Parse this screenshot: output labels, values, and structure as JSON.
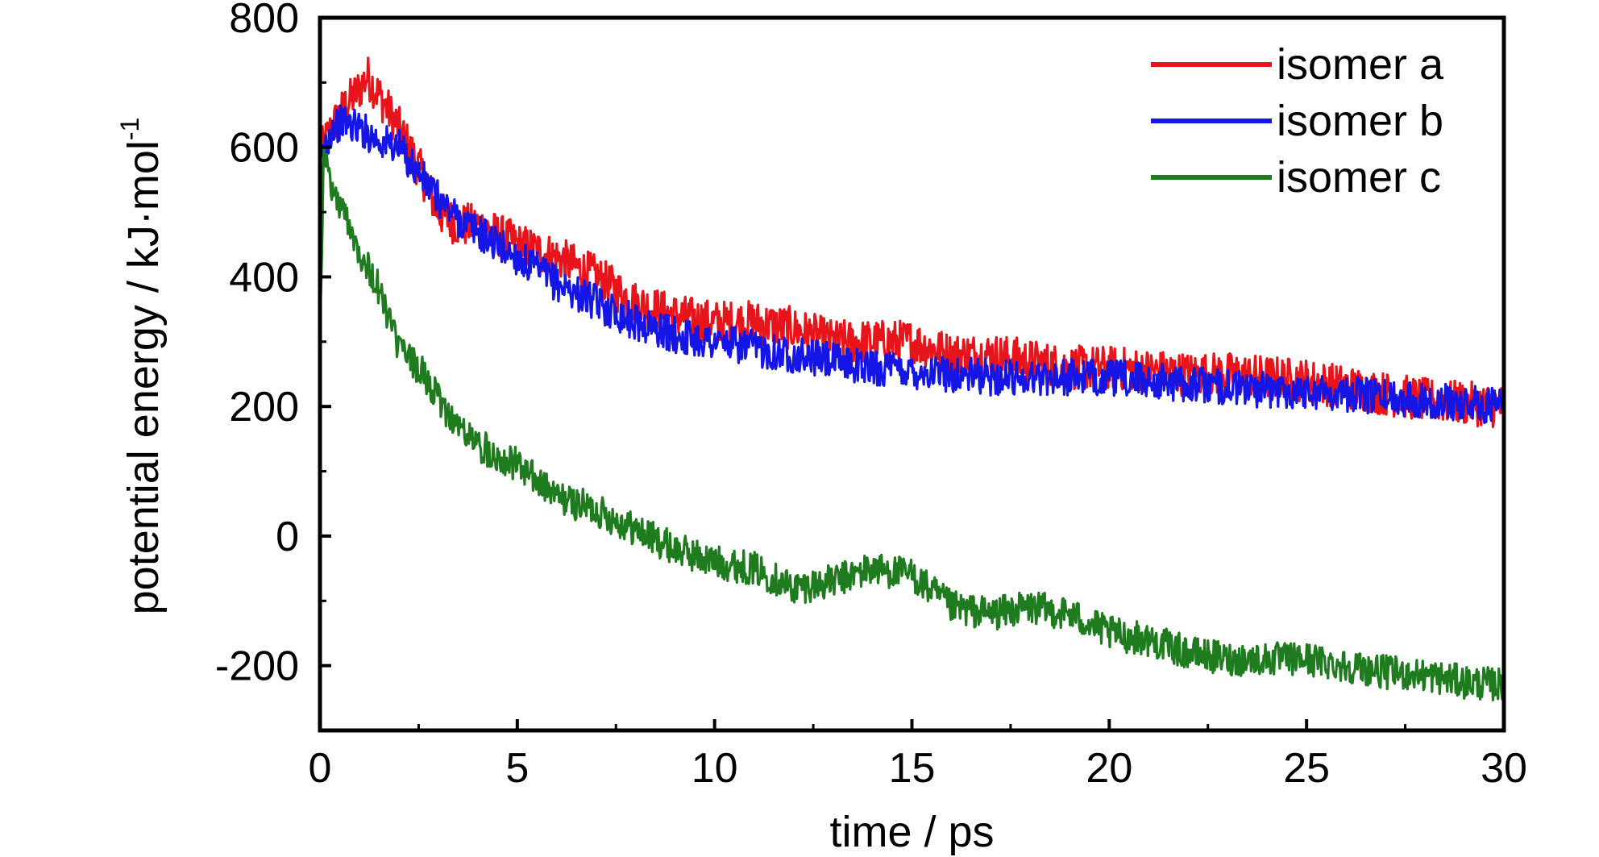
{
  "chart_data": {
    "type": "line",
    "xlabel": "time / ps",
    "ylabel": "potential energy / kJ·mol",
    "ylabel_superscript": "-1",
    "xlim": [
      0,
      30
    ],
    "ylim": [
      -300,
      800
    ],
    "x_ticks": [
      0,
      5,
      10,
      15,
      20,
      25,
      30
    ],
    "x_tick_labels": [
      "0",
      "5",
      "10",
      "15",
      "20",
      "25",
      "30"
    ],
    "y_ticks": [
      -200,
      0,
      200,
      400,
      600,
      800
    ],
    "y_tick_labels": [
      "-200",
      "0",
      "200",
      "400",
      "600",
      "800"
    ],
    "grid": false,
    "legend_position": "top-right",
    "series": [
      {
        "name": "isomer a",
        "color": "#e8141b",
        "x": [
          0,
          0.3,
          0.6,
          1.0,
          1.2,
          1.5,
          2.0,
          2.5,
          3.0,
          3.5,
          4.0,
          5.0,
          6.0,
          7.0,
          8.0,
          9.0,
          10.0,
          11.0,
          12.0,
          13.0,
          14.0,
          15.0,
          16.0,
          17.0,
          18.0,
          19.0,
          20.0,
          21.0,
          22.0,
          23.0,
          24.0,
          25.0,
          26.0,
          27.0,
          28.0,
          29.0,
          30.0
        ],
        "y": [
          590,
          630,
          660,
          690,
          710,
          680,
          630,
          570,
          500,
          480,
          480,
          450,
          430,
          400,
          360,
          340,
          330,
          330,
          320,
          300,
          300,
          300,
          280,
          280,
          270,
          260,
          260,
          255,
          250,
          250,
          245,
          240,
          230,
          220,
          210,
          205,
          200
        ]
      },
      {
        "name": "isomer b",
        "color": "#1515e6",
        "x": [
          0,
          0.3,
          0.6,
          1.0,
          1.5,
          2.0,
          2.5,
          3.0,
          3.5,
          4.0,
          5.0,
          6.0,
          7.0,
          8.0,
          9.0,
          10.0,
          11.0,
          12.0,
          13.0,
          14.0,
          15.0,
          16.0,
          17.0,
          18.0,
          19.0,
          20.0,
          21.0,
          22.0,
          23.0,
          24.0,
          25.0,
          26.0,
          27.0,
          28.0,
          29.0,
          30.0
        ],
        "y": [
          580,
          630,
          640,
          630,
          610,
          600,
          560,
          520,
          490,
          470,
          430,
          390,
          360,
          330,
          310,
          300,
          290,
          280,
          270,
          260,
          255,
          250,
          245,
          245,
          245,
          245,
          240,
          235,
          230,
          225,
          225,
          220,
          215,
          210,
          205,
          200
        ]
      },
      {
        "name": "isomer c",
        "color": "#1e7b1e",
        "x": [
          0,
          0.1,
          0.2,
          0.4,
          0.7,
          1.0,
          1.5,
          2.0,
          2.5,
          3.0,
          3.5,
          4.0,
          5.0,
          6.0,
          7.0,
          8.0,
          9.0,
          10.0,
          11.0,
          12.0,
          13.0,
          14.0,
          15.0,
          16.0,
          17.0,
          18.0,
          19.0,
          20.0,
          21.0,
          22.0,
          23.0,
          24.0,
          25.0,
          26.0,
          27.0,
          28.0,
          29.0,
          30.0
        ],
        "y": [
          320,
          600,
          560,
          520,
          490,
          440,
          380,
          290,
          260,
          210,
          170,
          140,
          110,
          60,
          40,
          10,
          -20,
          -40,
          -50,
          -80,
          -70,
          -50,
          -60,
          -110,
          -120,
          -110,
          -120,
          -150,
          -160,
          -180,
          -190,
          -190,
          -190,
          -200,
          -210,
          -215,
          -225,
          -230
        ]
      }
    ]
  }
}
